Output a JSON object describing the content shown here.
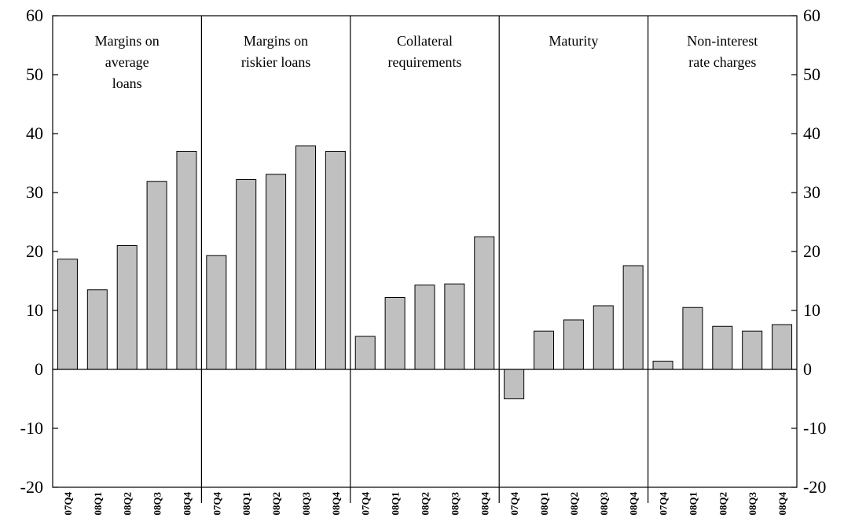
{
  "chart_data": {
    "type": "bar",
    "title": "",
    "xlabel": "",
    "ylabel": "",
    "ylim": [
      -20,
      60
    ],
    "yticks": [
      -20,
      -10,
      0,
      10,
      20,
      30,
      40,
      50,
      60
    ],
    "grid": false,
    "bar_color": "#c0c0c0",
    "categories": [
      "07Q4",
      "08Q1",
      "08Q2",
      "08Q3",
      "08Q4"
    ],
    "panels": [
      {
        "title": [
          "Margins on",
          "average",
          "loans"
        ],
        "values": [
          18.7,
          13.5,
          21.0,
          31.9,
          37.0
        ]
      },
      {
        "title": [
          "Margins on",
          "riskier loans"
        ],
        "values": [
          19.3,
          32.2,
          33.1,
          37.9,
          37.0
        ]
      },
      {
        "title": [
          "Collateral",
          "requirements"
        ],
        "values": [
          5.6,
          12.2,
          14.3,
          14.5,
          22.5
        ]
      },
      {
        "title": [
          "Maturity"
        ],
        "values": [
          -5.0,
          6.5,
          8.4,
          10.8,
          17.6
        ]
      },
      {
        "title": [
          "Non-interest",
          "rate charges"
        ],
        "values": [
          1.4,
          10.5,
          7.3,
          6.5,
          7.6
        ]
      }
    ]
  }
}
